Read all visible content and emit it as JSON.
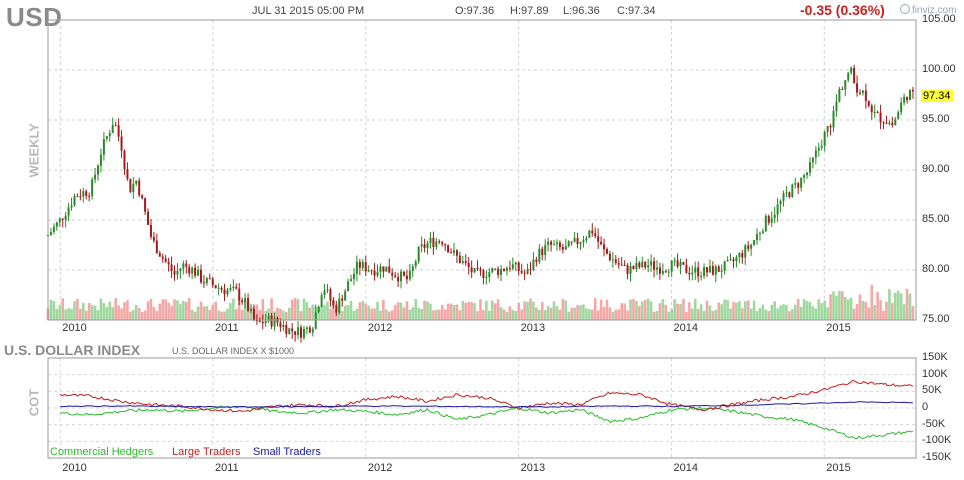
{
  "header": {
    "symbol": "USD",
    "datetime": "JUL 31 2015 05:00 PM",
    "open": "O:97.36",
    "high": "H:97.89",
    "low": "L:96.36",
    "close": "C:97.34",
    "change": "-0.35 (0.36%)",
    "brand": "finviz.com"
  },
  "price_panel": {
    "side_label": "WEEKLY",
    "last_price_label": "97.34",
    "y_ticks": [
      "105.00",
      "100.00",
      "95.00",
      "90.00",
      "85.00",
      "80.00",
      "75.00"
    ],
    "x_ticks": [
      "2010",
      "2011",
      "2012",
      "2013",
      "2014",
      "2015"
    ]
  },
  "cot_panel": {
    "title": "U.S. DOLLAR INDEX",
    "subtitle": "U.S. DOLLAR INDEX X $1000",
    "side_label": "COT",
    "y_ticks": [
      "150K",
      "100K",
      "50K",
      "0",
      "-50K",
      "-100K",
      "-150K"
    ],
    "x_ticks": [
      "2010",
      "2011",
      "2012",
      "2013",
      "2014",
      "2015"
    ],
    "legend": [
      {
        "name": "Commercial Hedgers",
        "color": "#2db92d"
      },
      {
        "name": "Large Traders",
        "color": "#c41e1e"
      },
      {
        "name": "Small Traders",
        "color": "#1a1aa6"
      }
    ]
  },
  "chart_data": [
    {
      "type": "line",
      "title": "USD",
      "ylabel": "",
      "ylim": [
        75,
        105
      ],
      "x_unit": "year",
      "series": [
        {
          "name": "",
          "x": [
            2009.92,
            2010.0,
            2010.1,
            2010.2,
            2010.27,
            2010.35,
            2010.4,
            2010.45,
            2010.5,
            2010.55,
            2010.6,
            2010.68,
            2010.75,
            2010.8,
            2010.87,
            2010.93,
            2011.0,
            2011.08,
            2011.15,
            2011.22,
            2011.28,
            2011.35,
            2011.42,
            2011.5,
            2011.58,
            2011.65,
            2011.72,
            2011.8,
            2011.88,
            2011.95,
            2012.05,
            2012.12,
            2012.2,
            2012.28,
            2012.35,
            2012.42,
            2012.5,
            2012.58,
            2012.65,
            2012.72,
            2012.8,
            2012.88,
            2012.95,
            2013.05,
            2013.12,
            2013.2,
            2013.3,
            2013.4,
            2013.48,
            2013.55,
            2013.62,
            2013.7,
            2013.78,
            2013.85,
            2013.93,
            2014.0,
            2014.1,
            2014.2,
            2014.3,
            2014.38,
            2014.45,
            2014.52,
            2014.6,
            2014.68,
            2014.75,
            2014.82,
            2014.9,
            2014.97,
            2015.05,
            2015.1,
            2015.17,
            2015.2,
            2015.27,
            2015.33,
            2015.4,
            2015.45,
            2015.5,
            2015.55,
            2015.58
          ],
          "values": [
            83.5,
            85.0,
            87.5,
            88.0,
            92.0,
            95.0,
            92.5,
            88.0,
            89.0,
            86.0,
            83.0,
            81.0,
            79.5,
            80.5,
            80.0,
            79.0,
            78.5,
            78.0,
            77.8,
            76.5,
            74.5,
            75.0,
            74.8,
            74.0,
            73.8,
            74.5,
            78.5,
            76.0,
            78.5,
            80.5,
            80.0,
            80.3,
            79.5,
            79.0,
            82.0,
            82.8,
            83.0,
            81.5,
            80.5,
            79.5,
            79.8,
            80.0,
            80.5,
            79.5,
            81.5,
            82.5,
            82.0,
            83.0,
            84.0,
            82.0,
            81.0,
            80.0,
            80.3,
            80.5,
            80.2,
            80.5,
            80.0,
            79.8,
            80.0,
            80.5,
            81.5,
            82.5,
            84.5,
            86.0,
            87.5,
            88.5,
            90.0,
            92.5,
            95.0,
            98.0,
            100.0,
            98.5,
            97.5,
            95.5,
            95.0,
            94.5,
            96.5,
            97.8,
            97.34
          ]
        }
      ]
    },
    {
      "type": "line",
      "title": "U.S. DOLLAR INDEX",
      "ylim": [
        -150000,
        150000
      ],
      "x_unit": "year",
      "series": [
        {
          "name": "Commercial Hedgers",
          "x": [
            2010.0,
            2010.2,
            2010.4,
            2010.6,
            2010.8,
            2011.0,
            2011.2,
            2011.4,
            2011.6,
            2011.8,
            2012.0,
            2012.2,
            2012.4,
            2012.6,
            2012.8,
            2013.0,
            2013.2,
            2013.4,
            2013.6,
            2013.8,
            2014.0,
            2014.2,
            2014.4,
            2014.6,
            2014.8,
            2015.0,
            2015.2,
            2015.4,
            2015.58
          ],
          "values": [
            -15000,
            -20000,
            -10000,
            -5000,
            -10000,
            0,
            5000,
            -10000,
            -15000,
            -5000,
            -10000,
            -20000,
            -5000,
            -35000,
            -20000,
            0,
            -15000,
            -5000,
            -40000,
            -30000,
            -5000,
            0,
            -10000,
            -25000,
            -35000,
            -60000,
            -90000,
            -80000,
            -70000
          ]
        },
        {
          "name": "Large Traders",
          "x": [
            2010.0,
            2010.2,
            2010.4,
            2010.6,
            2010.8,
            2011.0,
            2011.2,
            2011.4,
            2011.6,
            2011.8,
            2012.0,
            2012.2,
            2012.4,
            2012.6,
            2012.8,
            2013.0,
            2013.2,
            2013.4,
            2013.6,
            2013.8,
            2014.0,
            2014.2,
            2014.4,
            2014.6,
            2014.8,
            2015.0,
            2015.2,
            2015.4,
            2015.58
          ],
          "values": [
            40000,
            35000,
            20000,
            10000,
            5000,
            -5000,
            -10000,
            5000,
            10000,
            5000,
            25000,
            35000,
            20000,
            40000,
            30000,
            0,
            15000,
            10000,
            45000,
            40000,
            10000,
            -5000,
            10000,
            25000,
            35000,
            55000,
            80000,
            70000,
            65000
          ]
        },
        {
          "name": "Small Traders",
          "x": [
            2010.0,
            2010.4,
            2010.8,
            2011.2,
            2011.6,
            2012.0,
            2012.4,
            2012.8,
            2013.2,
            2013.6,
            2014.0,
            2014.4,
            2014.8,
            2015.2,
            2015.58
          ],
          "values": [
            5000,
            6000,
            4000,
            3000,
            4000,
            6000,
            5000,
            4000,
            3000,
            6000,
            5000,
            8000,
            12000,
            18000,
            16000
          ]
        }
      ]
    }
  ]
}
